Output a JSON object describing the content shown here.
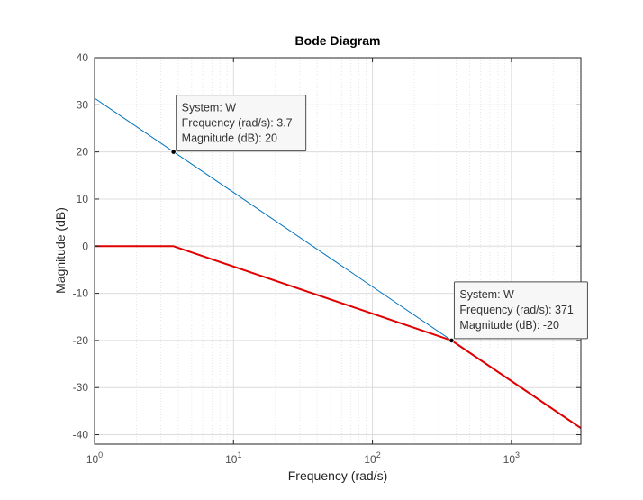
{
  "chart_data": {
    "type": "line",
    "title": "Bode Diagram",
    "xlabel": "Frequency  (rad/s)",
    "ylabel": "Magnitude (dB)",
    "xscale": "log",
    "xlim": [
      1,
      3162
    ],
    "ylim": [
      -42,
      40
    ],
    "grid": true,
    "x_ticks": [
      1,
      10,
      100,
      1000
    ],
    "x_tick_labels": [
      {
        "base": "10",
        "exp": "0"
      },
      {
        "base": "10",
        "exp": "1"
      },
      {
        "base": "10",
        "exp": "2"
      },
      {
        "base": "10",
        "exp": "3"
      }
    ],
    "y_ticks": [
      40,
      30,
      20,
      10,
      0,
      -10,
      -20,
      -30,
      -40
    ],
    "y_tick_labels": [
      "40",
      "30",
      "20",
      "10",
      "0",
      "-10",
      "-20",
      "-30",
      "-40"
    ],
    "series": [
      {
        "color": "#0072BD",
        "x": [
          1,
          3162
        ],
        "y": [
          31.4,
          -38.6
        ]
      },
      {
        "color": "#E00000",
        "x": [
          1,
          3.7,
          371,
          3162
        ],
        "y": [
          0,
          0,
          -20,
          -38.6
        ]
      }
    ],
    "annotations": [
      {
        "point": {
          "x": 3.7,
          "y": 20
        },
        "lines": [
          "System: W",
          "Frequency (rad/s): 3.7",
          "Magnitude (dB): 20"
        ]
      },
      {
        "point": {
          "x": 371,
          "y": -20
        },
        "lines": [
          "System: W",
          "Frequency (rad/s): 371",
          "Magnitude (dB): -20"
        ]
      }
    ]
  }
}
